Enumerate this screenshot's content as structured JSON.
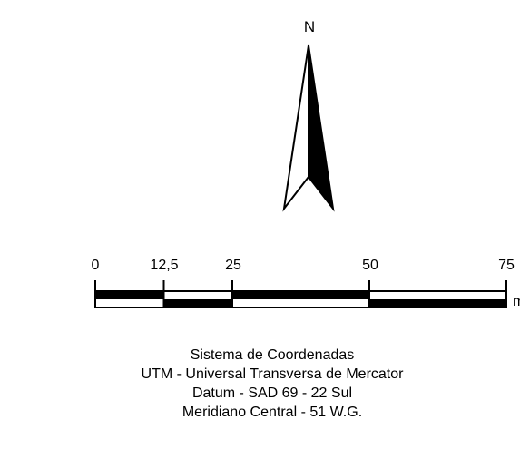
{
  "north_arrow": {
    "letter": "N",
    "icon": "north-arrow-icon"
  },
  "scale_bar": {
    "ticks": [
      "0",
      "12,5",
      "25",
      "50",
      "75"
    ],
    "tick_values": [
      0,
      12.5,
      25,
      50,
      75
    ],
    "unit": "m"
  },
  "projection_info": {
    "lines": [
      "Sistema de Coordenadas",
      "UTM - Universal Transversa de Mercator",
      "Datum - SAD 69 - 22 Sul",
      "Meridiano Central - 51 W.G."
    ]
  },
  "colors": {
    "ink": "#000000",
    "paper": "#ffffff"
  }
}
